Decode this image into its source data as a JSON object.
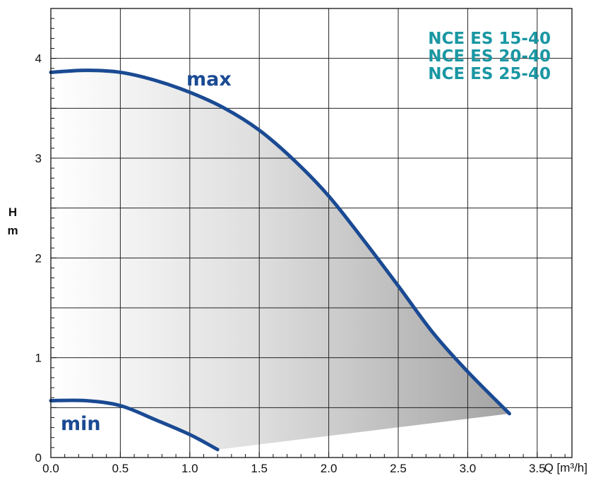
{
  "chart_data": {
    "type": "line",
    "title": "",
    "xlabel": "Q [m³/h]",
    "ylabel": [
      "H",
      "m"
    ],
    "xlim": [
      0.0,
      3.75
    ],
    "ylim": [
      0,
      4.5
    ],
    "x_ticks": [
      "0.0",
      "0.5",
      "1.0",
      "1.5",
      "2.0",
      "2.5",
      "3.0",
      "3.5"
    ],
    "y_ticks": [
      "0",
      "1",
      "2",
      "3",
      "4"
    ],
    "grid": true,
    "models": [
      "NCE ES 15-40",
      "NCE ES 20-40",
      "NCE ES 25-40"
    ],
    "series": [
      {
        "name": "max",
        "color": "#1a4a93",
        "x": [
          0.0,
          0.25,
          0.5,
          0.75,
          1.0,
          1.25,
          1.5,
          1.75,
          2.0,
          2.25,
          2.5,
          2.75,
          3.0,
          3.3
        ],
        "y": [
          3.86,
          3.88,
          3.86,
          3.78,
          3.66,
          3.5,
          3.28,
          2.98,
          2.62,
          2.18,
          1.72,
          1.25,
          0.86,
          0.44
        ]
      },
      {
        "name": "min",
        "color": "#1a4a93",
        "x": [
          0.0,
          0.25,
          0.5,
          0.75,
          1.0,
          1.2
        ],
        "y": [
          0.57,
          0.57,
          0.52,
          0.38,
          0.23,
          0.08
        ]
      }
    ],
    "shaded_region": "between min and max curves",
    "label_color": "#1a4a93",
    "model_label_color": "#1a97a3"
  }
}
